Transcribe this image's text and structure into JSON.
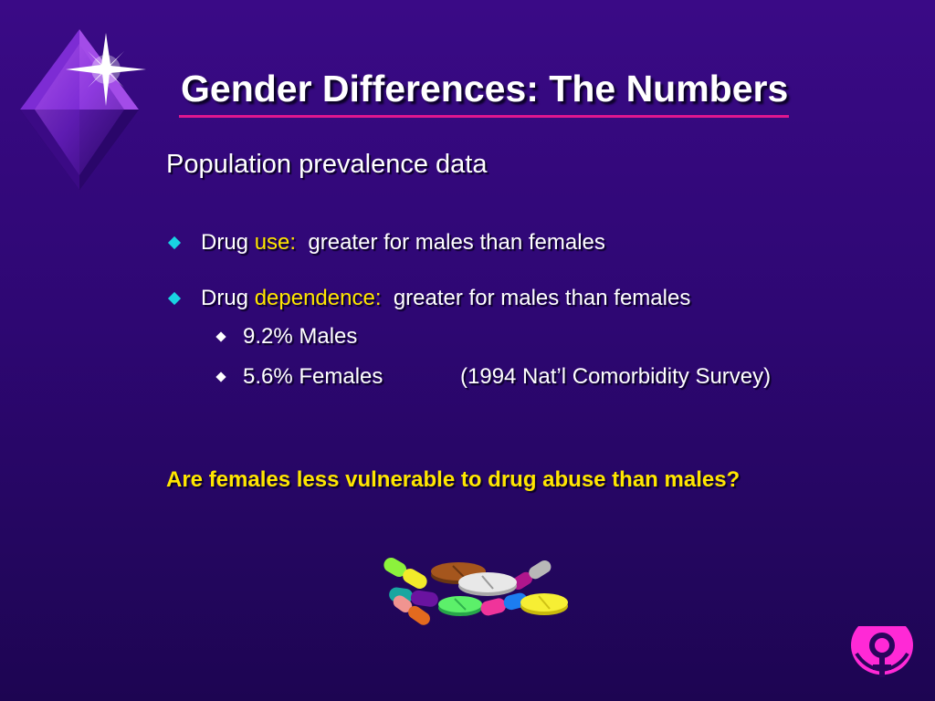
{
  "slide": {
    "title": "Gender Differences:  The Numbers",
    "subtitle": "Population prevalence data",
    "bullets": [
      {
        "prefix": "Drug ",
        "highlight": "use",
        "colon": ":",
        "rest": "  greater for males than females"
      },
      {
        "prefix": "Drug ",
        "highlight": "dependence",
        "colon": ":",
        "rest": "  greater for males than females",
        "sub_bullets": [
          {
            "text": "9.2% Males"
          },
          {
            "text": "5.6% Females",
            "note": "(1994 Nat’l Comorbidity Survey)"
          }
        ]
      }
    ],
    "question": "Are females less vulnerable to drug abuse than males?",
    "icons": {
      "logo": "diamond-sparkle-logo-icon",
      "clipart": "pills-capsules-icon",
      "corner": "female-symbol-icon"
    },
    "colors": {
      "background": "#2e0773",
      "title_rule": "#e0178f",
      "highlight": "#ffe600",
      "bullet_marker": "#19d3e2"
    }
  }
}
